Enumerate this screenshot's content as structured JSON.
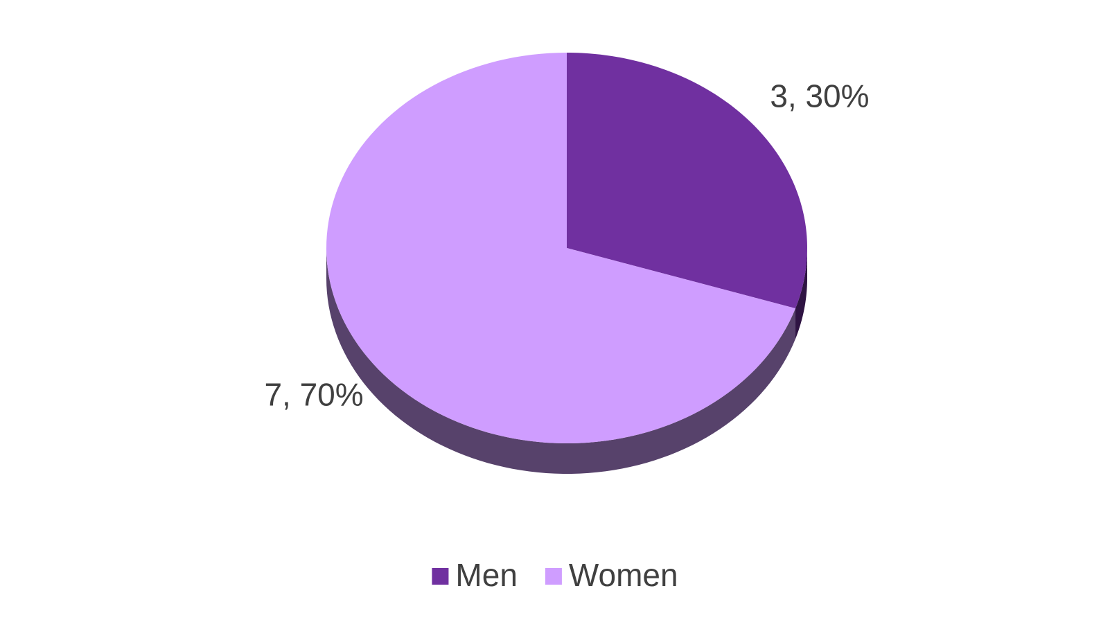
{
  "chart_data": {
    "type": "pie",
    "categories": [
      "Men",
      "Women"
    ],
    "values": [
      3,
      7
    ],
    "value_labels": [
      "3, 30%",
      "7, 70%"
    ],
    "colors": [
      "#7030a0",
      "#cf9dff"
    ],
    "legend": "bottom"
  }
}
